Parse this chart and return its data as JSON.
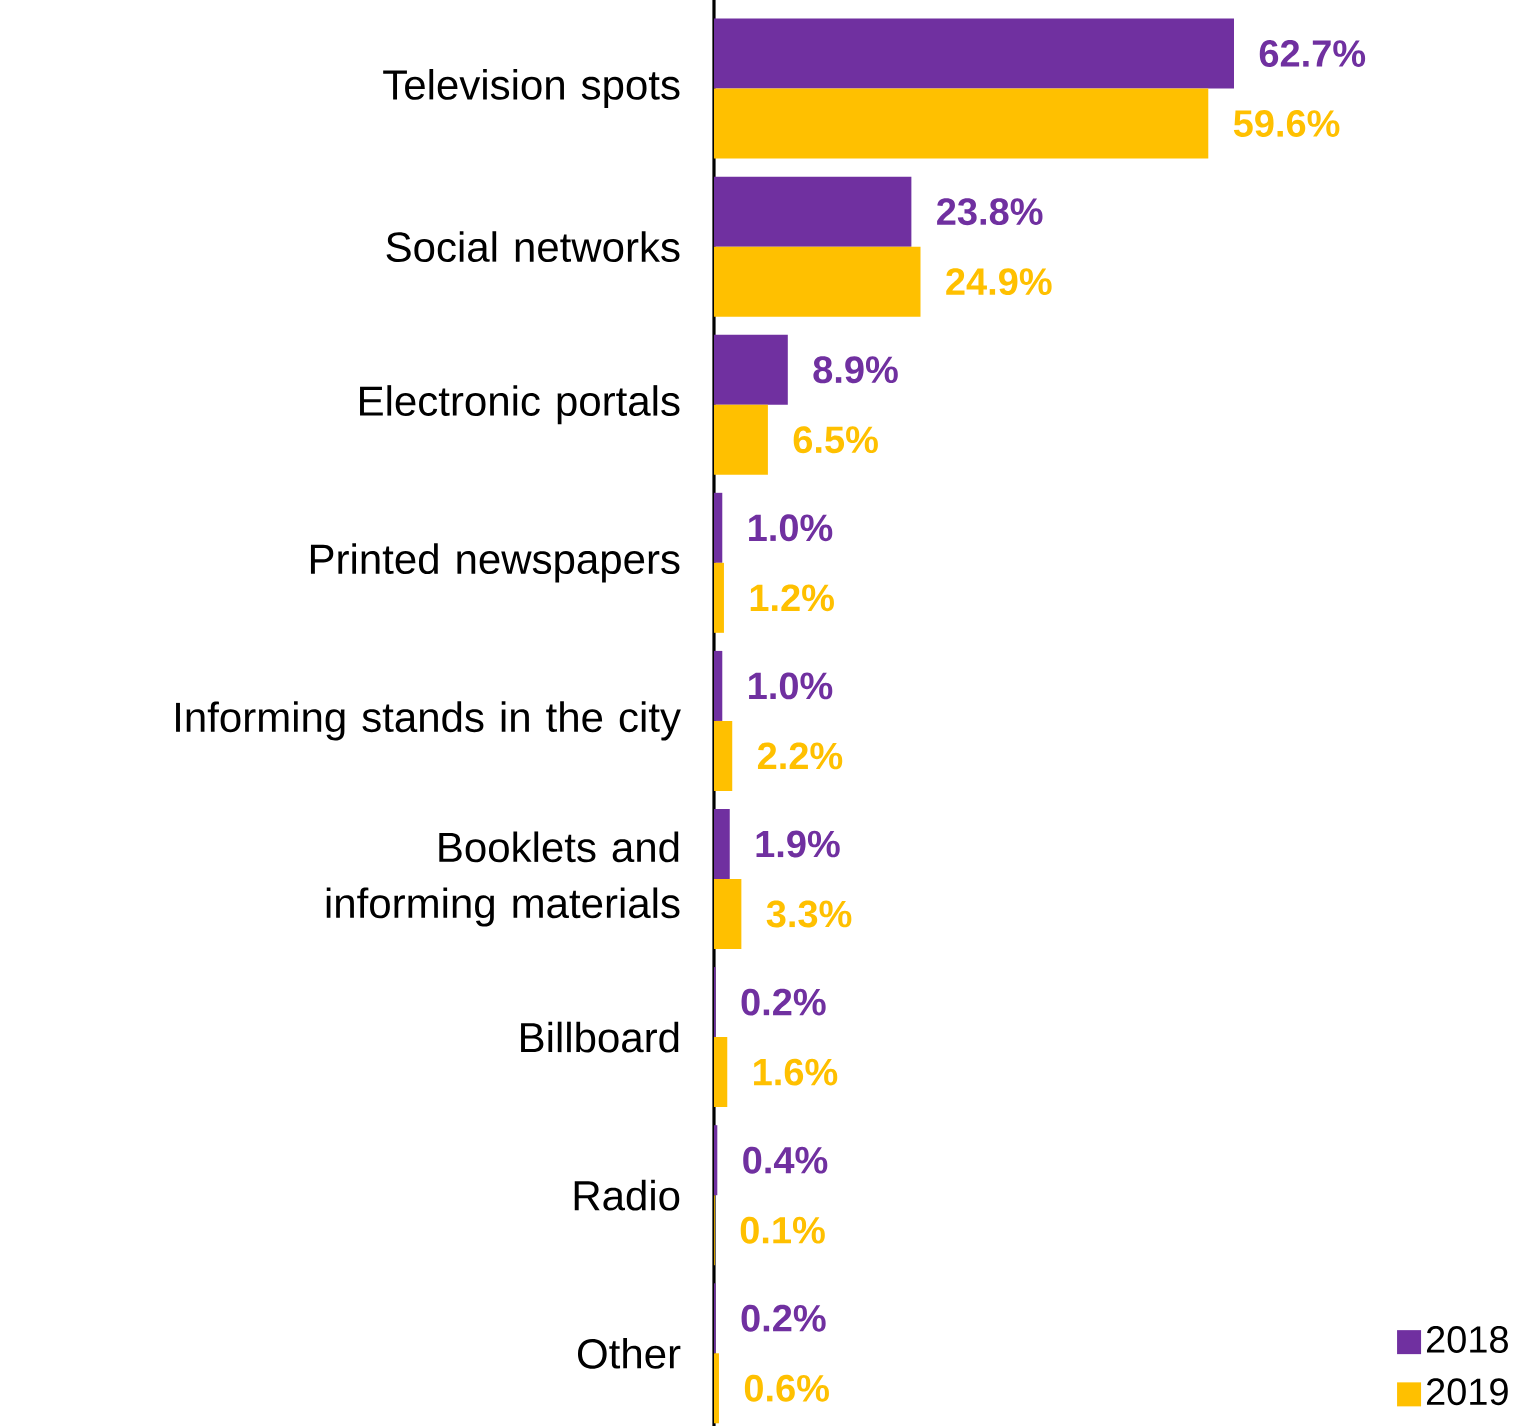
{
  "chart_data": {
    "type": "bar",
    "orientation": "horizontal",
    "categories": [
      "Television spots",
      "Social networks",
      "Electronic portals",
      "Printed newspapers",
      "Informing stands in the city",
      "Booklets and informing materials",
      "Billboard",
      "Radio",
      "Other"
    ],
    "series": [
      {
        "name": "2018",
        "color": "#7030a0",
        "values": [
          62.7,
          23.8,
          8.9,
          1.0,
          1.0,
          1.9,
          0.2,
          0.4,
          0.2
        ],
        "value_labels": [
          "62.7%",
          "23.8%",
          "8.9%",
          "1.0%",
          "1.0%",
          "1.9%",
          "0.2%",
          "0.4%",
          "0.2%"
        ]
      },
      {
        "name": "2019",
        "color": "#ffc000",
        "values": [
          59.6,
          24.9,
          6.5,
          1.2,
          2.2,
          3.3,
          1.6,
          0.1,
          0.6
        ],
        "value_labels": [
          "59.6%",
          "24.9%",
          "6.5%",
          "1.2%",
          "2.2%",
          "3.3%",
          "1.6%",
          "0.1%",
          "0.6%"
        ]
      }
    ],
    "legend": "bottom right",
    "tick_labels": "y"
  }
}
